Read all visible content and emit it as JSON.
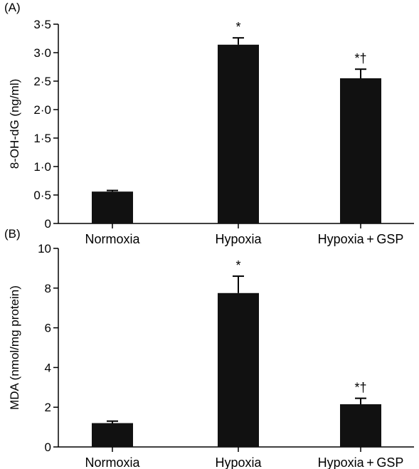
{
  "chart_data": [
    {
      "panel": "(A)",
      "type": "bar",
      "categories": [
        "Normoxia",
        "Hypoxia",
        "Hypoxia + GSP"
      ],
      "values": [
        0.56,
        3.14,
        2.55
      ],
      "errors": [
        0.02,
        0.12,
        0.16
      ],
      "annotations": [
        "",
        "*",
        "*†"
      ],
      "ylabel": "8-OH-dG (ng/ml)",
      "ylim": [
        0,
        3.5
      ],
      "yticks": [
        0,
        0.5,
        1.0,
        1.5,
        2.0,
        2.5,
        3.0,
        3.5
      ],
      "ytick_labels": [
        "0",
        "0·5",
        "1·0",
        "1·5",
        "2·0",
        "2·5",
        "3·0",
        "3·5"
      ],
      "bar_color": "#111111",
      "grid": false
    },
    {
      "panel": "(B)",
      "type": "bar",
      "categories": [
        "Normoxia",
        "Hypoxia",
        "Hypoxia + GSP"
      ],
      "values": [
        1.2,
        7.75,
        2.15
      ],
      "errors": [
        0.1,
        0.85,
        0.3
      ],
      "annotations": [
        "",
        "*",
        "*†"
      ],
      "ylabel": "MDA (nmol/mg protein)",
      "ylim": [
        0,
        10
      ],
      "yticks": [
        0,
        2,
        4,
        6,
        8,
        10
      ],
      "ytick_labels": [
        "0",
        "2",
        "4",
        "6",
        "8",
        "10"
      ],
      "bar_color": "#111111",
      "grid": false
    }
  ]
}
